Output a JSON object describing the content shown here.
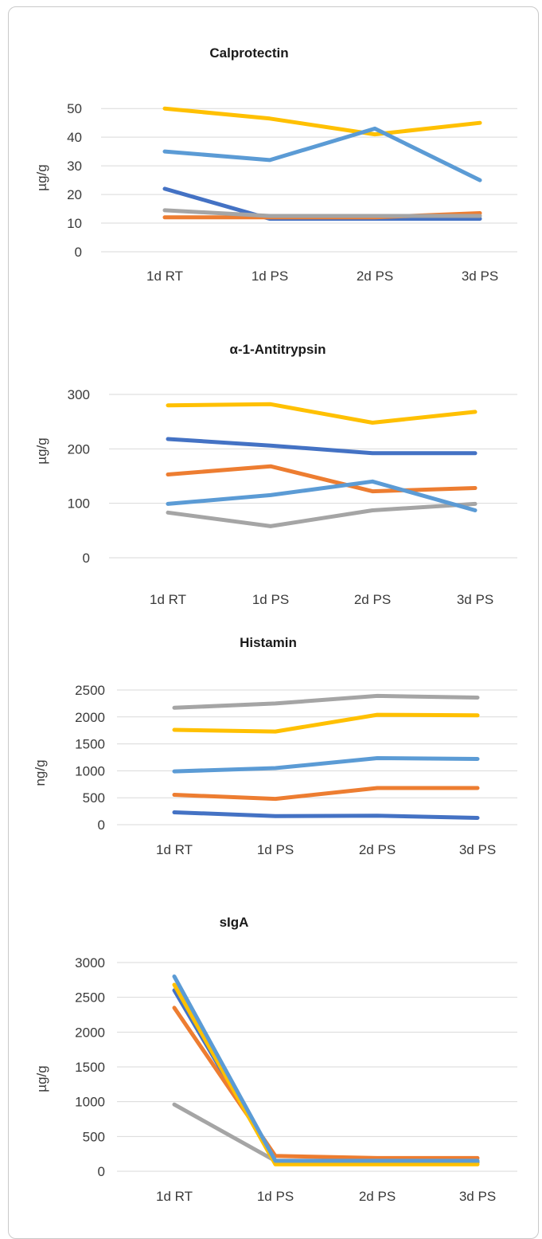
{
  "colors": {
    "dark_blue": "#4472c4",
    "orange": "#ed7d31",
    "gray": "#a5a5a5",
    "yellow": "#ffc000",
    "light_blue": "#5b9bd5"
  },
  "chart_data": [
    {
      "type": "line",
      "title": "Calprotectin",
      "xlabel": "",
      "ylabel": "µg/g",
      "categories": [
        "1d RT",
        "1d PS",
        "2d PS",
        "3d PS"
      ],
      "yticks": [
        0,
        10,
        20,
        30,
        40,
        50
      ],
      "ylim": [
        0,
        52
      ],
      "grid": true,
      "series": [
        {
          "color": "#4472c4",
          "values": [
            22,
            11.5,
            11.5,
            11.5
          ]
        },
        {
          "color": "#ed7d31",
          "values": [
            12,
            12,
            12,
            13.5
          ]
        },
        {
          "color": "#a5a5a5",
          "values": [
            14.5,
            12.5,
            12.5,
            12.5
          ]
        },
        {
          "color": "#ffc000",
          "values": [
            50,
            46.5,
            41,
            45
          ]
        },
        {
          "color": "#5b9bd5",
          "values": [
            35,
            32,
            43,
            25
          ]
        }
      ]
    },
    {
      "type": "line",
      "title": "α-1-Antitrypsin",
      "xlabel": "",
      "ylabel": "µg/g",
      "categories": [
        "1d RT",
        "1d PS",
        "2d PS",
        "3d PS"
      ],
      "yticks": [
        0,
        100,
        200,
        300
      ],
      "ylim": [
        0,
        300
      ],
      "grid": true,
      "series": [
        {
          "color": "#4472c4",
          "values": [
            218,
            206,
            192,
            192
          ]
        },
        {
          "color": "#ed7d31",
          "values": [
            153,
            168,
            122,
            128
          ]
        },
        {
          "color": "#a5a5a5",
          "values": [
            83,
            58,
            87,
            99
          ]
        },
        {
          "color": "#ffc000",
          "values": [
            280,
            282,
            248,
            268
          ]
        },
        {
          "color": "#5b9bd5",
          "values": [
            99,
            115,
            140,
            87
          ]
        }
      ]
    },
    {
      "type": "line",
      "title": "Histamin",
      "xlabel": "",
      "ylabel": "ng/g",
      "categories": [
        "1d RT",
        "1d PS",
        "2d PS",
        "3d PS"
      ],
      "yticks": [
        0,
        500,
        1000,
        1500,
        2000,
        2500
      ],
      "ylim": [
        0,
        2500
      ],
      "grid": true,
      "series": [
        {
          "color": "#4472c4",
          "values": [
            230,
            160,
            165,
            125
          ]
        },
        {
          "color": "#ed7d31",
          "values": [
            555,
            480,
            680,
            680
          ]
        },
        {
          "color": "#a5a5a5",
          "values": [
            2170,
            2250,
            2390,
            2360
          ]
        },
        {
          "color": "#ffc000",
          "values": [
            1760,
            1730,
            2040,
            2030
          ]
        },
        {
          "color": "#5b9bd5",
          "values": [
            990,
            1050,
            1235,
            1220
          ]
        }
      ]
    },
    {
      "type": "line",
      "title": "sIgA",
      "xlabel": "",
      "ylabel": "µg/g",
      "categories": [
        "1d RT",
        "1d PS",
        "2d PS",
        "3d PS"
      ],
      "yticks": [
        0,
        500,
        1000,
        1500,
        2000,
        2500,
        3000
      ],
      "ylim": [
        0,
        3000
      ],
      "grid": true,
      "series": [
        {
          "color": "#4472c4",
          "values": [
            2600,
            130,
            130,
            130
          ]
        },
        {
          "color": "#ed7d31",
          "values": [
            2350,
            220,
            190,
            190
          ]
        },
        {
          "color": "#a5a5a5",
          "values": [
            960,
            150,
            150,
            150
          ]
        },
        {
          "color": "#ffc000",
          "values": [
            2680,
            100,
            100,
            100
          ]
        },
        {
          "color": "#5b9bd5",
          "values": [
            2800,
            150,
            150,
            150
          ]
        }
      ]
    }
  ]
}
